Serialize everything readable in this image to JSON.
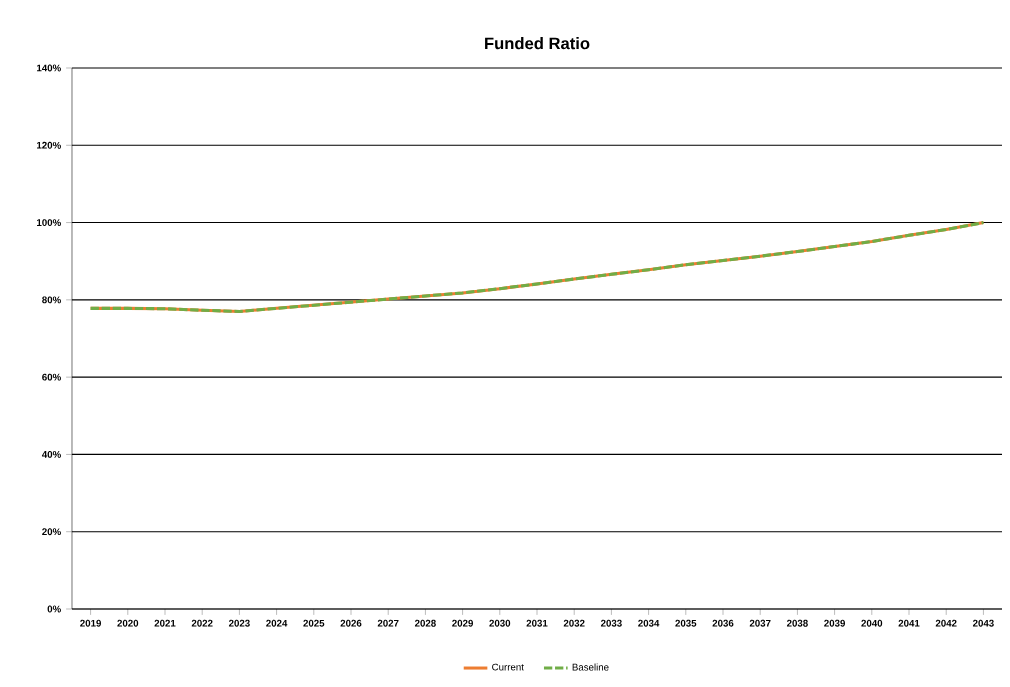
{
  "chart_data": {
    "type": "line",
    "title": "Funded Ratio",
    "categories": [
      "2019",
      "2020",
      "2021",
      "2022",
      "2023",
      "2024",
      "2025",
      "2026",
      "2027",
      "2028",
      "2029",
      "2030",
      "2031",
      "2032",
      "2033",
      "2034",
      "2035",
      "2036",
      "2037",
      "2038",
      "2039",
      "2040",
      "2041",
      "2042",
      "2043"
    ],
    "series": [
      {
        "name": "Current",
        "color": "#ed7d31",
        "line_style": "solid",
        "values": [
          77.8,
          77.8,
          77.7,
          77.3,
          77.0,
          77.8,
          78.6,
          79.4,
          80.2,
          81.0,
          81.8,
          82.9,
          84.1,
          85.4,
          86.6,
          87.8,
          89.1,
          90.2,
          91.3,
          92.5,
          93.8,
          95.1,
          96.7,
          98.2,
          100.0
        ]
      },
      {
        "name": "Baseline",
        "color": "#70ad47",
        "line_style": "dashed",
        "values": [
          77.8,
          77.8,
          77.7,
          77.3,
          77.0,
          77.8,
          78.6,
          79.4,
          80.2,
          81.0,
          81.8,
          82.9,
          84.1,
          85.4,
          86.6,
          87.8,
          89.1,
          90.2,
          91.3,
          92.5,
          93.8,
          95.1,
          96.7,
          98.2,
          100.0
        ]
      }
    ],
    "ylim": [
      0,
      140
    ],
    "yticks": [
      {
        "value": 0,
        "label": "0%"
      },
      {
        "value": 20,
        "label": "20%"
      },
      {
        "value": 40,
        "label": "40%"
      },
      {
        "value": 60,
        "label": "60%"
      },
      {
        "value": 80,
        "label": "80%"
      },
      {
        "value": 100,
        "label": "100%"
      },
      {
        "value": 120,
        "label": "120%"
      },
      {
        "value": 140,
        "label": "140%"
      }
    ],
    "grid": "y",
    "legend": "bottom",
    "marker": "none"
  }
}
